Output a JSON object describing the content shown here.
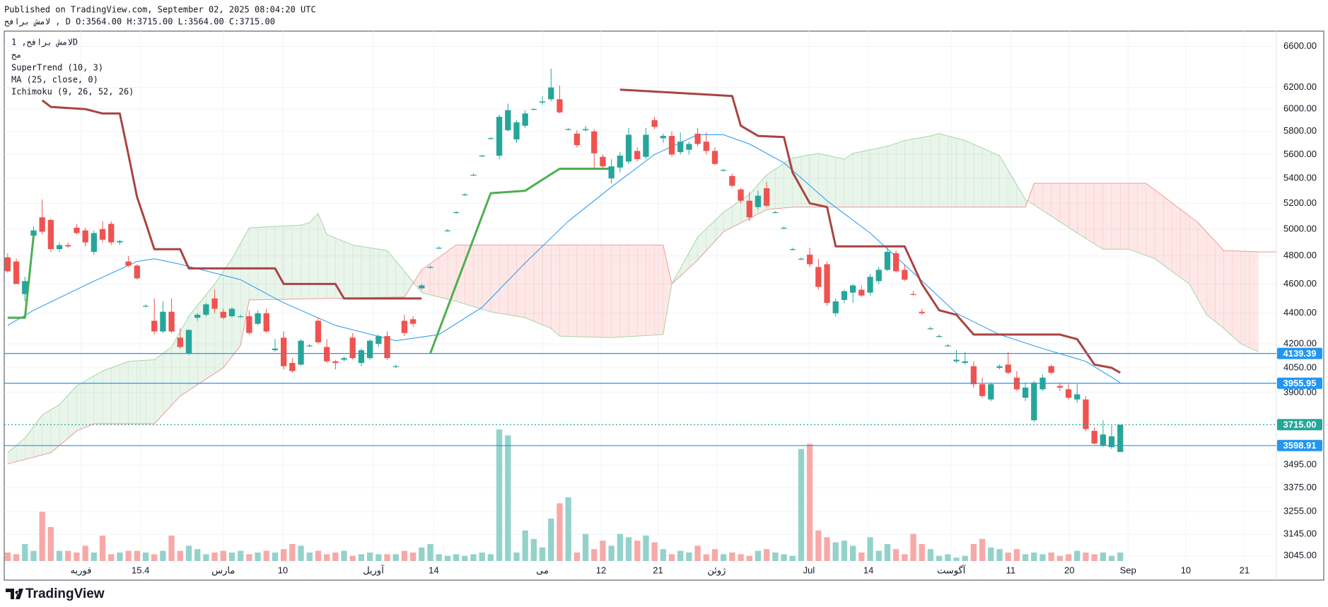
{
  "header": {
    "published": "Published on TradingView.com, September 02, 2025 08:04:20 UTC",
    "ohlc": "لامش برافح , D O:3564.00 H:3715.00 L:3564.00 C:3715.00"
  },
  "legend": {
    "symbol": "لامش برافح, 1D",
    "line2": "مح",
    "supertrend": "SuperTrend (10, 3)",
    "ma": "MA (25, close, 0)",
    "ichimoku": "Ichimoku (9, 26, 52, 26)"
  },
  "footer": {
    "brand": "TradingView"
  },
  "chart_data": {
    "type": "candlestick",
    "log_scale": true,
    "grid": true,
    "colors": {
      "up": "#26a69a",
      "down": "#ef5350",
      "up_volume": "#93d2cb",
      "down_volume": "#f7a9a7"
    },
    "xlim": [
      -0.4,
      147.1
    ],
    "ylim": [
      3020,
      6754
    ],
    "yticks": [
      {
        "value": 6600,
        "label": "6600.00"
      },
      {
        "value": 6200,
        "label": "6200.00"
      },
      {
        "value": 6000,
        "label": "6000.00"
      },
      {
        "value": 5800,
        "label": "5800.00"
      },
      {
        "value": 5600,
        "label": "5600.00"
      },
      {
        "value": 5400,
        "label": "5400.00"
      },
      {
        "value": 5200,
        "label": "5200.00"
      },
      {
        "value": 5000,
        "label": "5000.00"
      },
      {
        "value": 4800,
        "label": "4800.00"
      },
      {
        "value": 4600,
        "label": "4600.00"
      },
      {
        "value": 4400,
        "label": "4400.00"
      },
      {
        "value": 4200,
        "label": "4200.00"
      },
      {
        "value": 4050,
        "label": "4050.00"
      },
      {
        "value": 3900,
        "label": "3900.00"
      },
      {
        "value": 3495,
        "label": "3495.00"
      },
      {
        "value": 3375,
        "label": "3375.00"
      },
      {
        "value": 3255,
        "label": "3255.00"
      },
      {
        "value": 3145,
        "label": "3145.00"
      },
      {
        "value": 3045,
        "label": "3045.00"
      }
    ],
    "xticks": [
      {
        "value": 8.5,
        "label": "فوریه"
      },
      15.4,
      {
        "value": 25,
        "label": "مارس"
      },
      {
        "value": 31.9,
        "label": "10"
      },
      {
        "value": 42.4,
        "label": "آوریل"
      },
      {
        "value": 49.4,
        "label": "14"
      },
      {
        "value": 62,
        "label": "می"
      },
      {
        "value": 68.8,
        "label": "12"
      },
      {
        "value": 75.4,
        "label": "21"
      },
      {
        "value": 82.2,
        "label": "ژوئن"
      },
      {
        "value": 92.9,
        "label": "Jul"
      },
      {
        "value": 99.8,
        "label": "14"
      },
      {
        "value": 109.4,
        "label": "آگوست"
      },
      {
        "value": 116.3,
        "label": "11"
      },
      {
        "value": 123.1,
        "label": "20"
      },
      {
        "value": 129.9,
        "label": "Sep"
      },
      {
        "value": 136.6,
        "label": "10"
      },
      {
        "value": 143.4,
        "label": "21"
      }
    ],
    "open": [
      4790,
      4760,
      4530,
      4950,
      5090,
      5070,
      4850,
      4880,
      5010,
      4990,
      4830,
      5000,
      5040,
      4900,
      4760,
      4730,
      4450,
      4350,
      4280,
      4410,
      4240,
      4140,
      4370,
      4390,
      4500,
      4410,
      4380,
      4380,
      4380,
      4330,
      4400,
      4160,
      4240,
      4080,
      4070,
      4190,
      4350,
      4180,
      4090,
      4100,
      4240,
      4080,
      4110,
      4200,
      4250,
      4060,
      4350,
      4360,
      4570,
      4720,
      4860,
      4990,
      5130,
      5270,
      5430,
      5590,
      5740,
      5590,
      5810,
      5730,
      5850,
      6000,
      6060,
      6090,
      6090,
      5820,
      5780,
      5810,
      5800,
      5580,
      5400,
      5490,
      5540,
      5630,
      5580,
      5900,
      5740,
      5760,
      5620,
      5640,
      5780,
      5710,
      5630,
      5470,
      5420,
      5310,
      5220,
      5170,
      5320,
      5130,
      5010,
      4850,
      4780,
      4810,
      4720,
      4740,
      4400,
      4490,
      4540,
      4560,
      4540,
      4620,
      4700,
      4820,
      4700,
      4530,
      4410,
      4300,
      4250,
      4190,
      4090,
      4080,
      4060,
      3950,
      3860,
      4050,
      4070,
      3990,
      3870,
      3740,
      3920,
      4060,
      3940,
      3920,
      3860,
      3860,
      3680,
      3600,
      3590,
      3564
    ],
    "high": [
      4820,
      4780,
      4650,
      5020,
      5230,
      5080,
      4900,
      4900,
      5040,
      5010,
      4990,
      5060,
      5060,
      4920,
      4800,
      4740,
      4460,
      4500,
      4480,
      4500,
      4300,
      4290,
      4400,
      4470,
      4560,
      4430,
      4440,
      4390,
      4420,
      4420,
      4430,
      4230,
      4280,
      4110,
      4230,
      4200,
      4370,
      4230,
      4100,
      4120,
      4270,
      4170,
      4230,
      4260,
      4280,
      4070,
      4390,
      4380,
      4600,
      4730,
      4870,
      5000,
      5140,
      5280,
      5440,
      5600,
      5750,
      5950,
      6050,
      5900,
      5990,
      6010,
      6120,
      6380,
      6220,
      5830,
      5810,
      5850,
      5820,
      5600,
      5560,
      5620,
      5830,
      5660,
      5830,
      5930,
      5780,
      5800,
      5790,
      5710,
      5830,
      5790,
      5660,
      5480,
      5440,
      5320,
      5290,
      5300,
      5370,
      5140,
      5020,
      4860,
      4790,
      4860,
      4780,
      4760,
      4500,
      4560,
      4600,
      4590,
      4670,
      4720,
      4860,
      4840,
      4740,
      4550,
      4430,
      4310,
      4260,
      4200,
      4160,
      4150,
      4090,
      3990,
      3960,
      4070,
      4150,
      4030,
      3960,
      3970,
      4010,
      4070,
      3960,
      3950,
      3950,
      3880,
      3700,
      3740,
      3710,
      3715
    ],
    "low": [
      4680,
      4600,
      4480,
      4900,
      4960,
      4830,
      4830,
      4860,
      4960,
      4870,
      4810,
      4900,
      4880,
      4880,
      4720,
      4630,
      4440,
      4260,
      4270,
      4270,
      4170,
      4130,
      4350,
      4380,
      4400,
      4360,
      4370,
      4370,
      4260,
      4320,
      4270,
      4150,
      4040,
      4020,
      4060,
      4180,
      4200,
      4080,
      4040,
      4090,
      4100,
      4060,
      4100,
      4180,
      4100,
      4050,
      4250,
      4310,
      4560,
      4710,
      4850,
      4980,
      5120,
      5260,
      5420,
      5580,
      5730,
      5560,
      5800,
      5700,
      5830,
      5990,
      6040,
      6070,
      5960,
      5810,
      5660,
      5800,
      5480,
      5490,
      5360,
      5450,
      5520,
      5540,
      5560,
      5820,
      5700,
      5580,
      5600,
      5600,
      5670,
      5600,
      5510,
      5460,
      5330,
      5200,
      5060,
      5150,
      5170,
      5120,
      5000,
      4840,
      4770,
      4720,
      4560,
      4450,
      4380,
      4470,
      4470,
      4510,
      4520,
      4600,
      4690,
      4680,
      4620,
      4520,
      4390,
      4290,
      4240,
      4180,
      4080,
      4070,
      3930,
      3870,
      3850,
      4040,
      4010,
      3910,
      3850,
      3730,
      3910,
      4010,
      3910,
      3860,
      3840,
      3680,
      3605,
      3590,
      3580,
      3564
    ],
    "close": [
      4690,
      4600,
      4620,
      4990,
      4980,
      4850,
      4880,
      4870,
      4970,
      4900,
      4970,
      4920,
      4900,
      4910,
      4730,
      4640,
      4450,
      4280,
      4410,
      4280,
      4180,
      4290,
      4390,
      4460,
      4430,
      4370,
      4430,
      4380,
      4270,
      4400,
      4280,
      4170,
      4060,
      4030,
      4220,
      4190,
      4210,
      4090,
      4080,
      4110,
      4110,
      4160,
      4220,
      4250,
      4110,
      4060,
      4270,
      4330,
      4590,
      4720,
      4860,
      4990,
      5130,
      5270,
      5430,
      5590,
      5740,
      5930,
      5990,
      5880,
      5960,
      6000,
      6070,
      6200,
      5970,
      5820,
      5680,
      5820,
      5610,
      5500,
      5500,
      5590,
      5770,
      5560,
      5770,
      5840,
      5760,
      5600,
      5710,
      5690,
      5690,
      5630,
      5520,
      5470,
      5340,
      5220,
      5090,
      5260,
      5180,
      5130,
      5010,
      4850,
      4780,
      4740,
      4580,
      4470,
      4480,
      4550,
      4590,
      4520,
      4650,
      4700,
      4830,
      4690,
      4630,
      4525,
      4400,
      4300,
      4250,
      4190,
      4100,
      4090,
      3950,
      3880,
      3950,
      4060,
      4020,
      3920,
      3930,
      3960,
      3990,
      4020,
      3930,
      3870,
      3890,
      3690,
      3610,
      3660,
      3650,
      3715
    ],
    "volume": [
      10,
      8,
      20,
      12,
      58,
      40,
      12,
      12,
      10,
      18,
      10,
      30,
      8,
      10,
      12,
      12,
      10,
      8,
      12,
      30,
      12,
      18,
      14,
      8,
      10,
      12,
      10,
      12,
      8,
      10,
      12,
      10,
      14,
      20,
      18,
      10,
      12,
      8,
      10,
      12,
      6,
      8,
      10,
      8,
      8,
      8,
      12,
      10,
      16,
      20,
      8,
      6,
      8,
      6,
      8,
      10,
      8,
      155,
      148,
      10,
      36,
      26,
      16,
      50,
      68,
      75,
      10,
      32,
      14,
      24,
      18,
      32,
      28,
      24,
      30,
      22,
      14,
      8,
      12,
      10,
      18,
      8,
      14,
      8,
      10,
      8,
      6,
      12,
      14,
      10,
      8,
      6,
      132,
      138,
      36,
      28,
      22,
      24,
      18,
      10,
      28,
      12,
      20,
      14,
      8,
      32,
      20,
      14,
      6,
      8,
      4,
      6,
      20,
      26,
      16,
      14,
      10,
      14,
      8,
      10,
      8,
      10,
      6,
      8,
      12,
      10,
      8,
      10,
      6,
      10
    ],
    "cloud": {
      "span_a": 0,
      "span_b": 1,
      "up_fill": "rgba(76,175,80,0.12)",
      "down_fill": "rgba(244,67,54,0.12)"
    },
    "overlays": [
      {
        "color": "#a5d6a7",
        "width": 1,
        "x": [
          0,
          2,
          4,
          6,
          8,
          11,
          14,
          17,
          19,
          21,
          24,
          26,
          28,
          34,
          35,
          36,
          37,
          40,
          42,
          44,
          46,
          48,
          52,
          56,
          60,
          63,
          64,
          70,
          76,
          77,
          80,
          83,
          86,
          88,
          91,
          94,
          97,
          98,
          102,
          104,
          107,
          108,
          111,
          115,
          118,
          121,
          124,
          127,
          130,
          133,
          137,
          139,
          141,
          143,
          145
        ],
        "values": [
          3560,
          3640,
          3770,
          3830,
          3940,
          4030,
          4090,
          4100,
          4180,
          4380,
          4600,
          4780,
          5010,
          5030,
          5050,
          5120,
          4960,
          4880,
          4860,
          4840,
          4690,
          4540,
          4480,
          4410,
          4370,
          4300,
          4250,
          4240,
          4260,
          4600,
          4940,
          5130,
          5270,
          5430,
          5570,
          5610,
          5560,
          5610,
          5670,
          5720,
          5760,
          5780,
          5720,
          5590,
          5230,
          5100,
          4970,
          4850,
          4850,
          4780,
          4600,
          4390,
          4300,
          4200,
          4150
        ]
      },
      {
        "color": "#ef9a9a",
        "width": 1,
        "x": [
          0,
          5,
          8,
          10,
          17,
          20,
          25,
          27,
          28,
          46,
          48,
          52,
          76,
          77,
          80,
          83,
          88,
          91,
          118,
          119,
          132,
          138,
          141,
          145,
          148
        ],
        "values": [
          3500,
          3560,
          3680,
          3720,
          3720,
          3880,
          4050,
          4190,
          4490,
          4510,
          4700,
          4880,
          4880,
          4600,
          4770,
          4980,
          5150,
          5170,
          5170,
          5360,
          5360,
          5050,
          4840,
          4830,
          4830
        ]
      },
      {
        "color": "#2196f3",
        "width": 1,
        "x": [
          0,
          3,
          10,
          15,
          17,
          20,
          27,
          32,
          38,
          45,
          50,
          55,
          60,
          65,
          70,
          75,
          80,
          83,
          86,
          90,
          95,
          100,
          105,
          110,
          115,
          120,
          125,
          129
        ],
        "values": [
          4320,
          4420,
          4620,
          4760,
          4780,
          4740,
          4630,
          4470,
          4320,
          4220,
          4260,
          4440,
          4750,
          5060,
          5330,
          5600,
          5770,
          5770,
          5690,
          5530,
          5220,
          4970,
          4680,
          4400,
          4260,
          4170,
          4090,
          3960
        ]
      },
      {
        "color": "#4caf50",
        "width": 3,
        "x": [
          0,
          2,
          3,
          null,
          49,
          56,
          60,
          62,
          64,
          70
        ],
        "values": [
          4370,
          4370,
          4950,
          null,
          4140,
          5280,
          5300,
          5390,
          5480,
          5480
        ]
      },
      {
        "color": "#a94442",
        "width": 3,
        "x": [
          4,
          5,
          9,
          11,
          13,
          14,
          15,
          16,
          17,
          20,
          21,
          31,
          32,
          38,
          39,
          48,
          null,
          71,
          84,
          85,
          87,
          90,
          91,
          93,
          95,
          96,
          104,
          106,
          108,
          110,
          112,
          122,
          124,
          126,
          128,
          129
        ],
        "values": [
          6080,
          6020,
          6000,
          5960,
          5960,
          5600,
          5250,
          5050,
          4850,
          4850,
          4710,
          4710,
          4600,
          4600,
          4500,
          4500,
          null,
          6180,
          6120,
          5850,
          5760,
          5750,
          5450,
          5200,
          5170,
          4870,
          4870,
          4600,
          4420,
          4390,
          4260,
          4260,
          4230,
          4070,
          4050,
          4020
        ]
      }
    ],
    "levels": [
      {
        "value": 4139.39,
        "color": "#2196f3",
        "style": "solid"
      },
      {
        "value": 3955.95,
        "color": "#2196f3",
        "style": "solid"
      },
      {
        "value": 3715,
        "label": "3715.00",
        "color": "#26a69a",
        "style": "dotted"
      },
      {
        "value": 3598.91,
        "color": "#2196f3",
        "style": "solid"
      }
    ]
  }
}
